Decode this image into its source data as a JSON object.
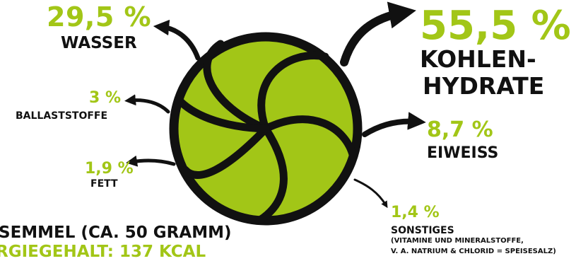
{
  "colors": {
    "accent": "#a2c617",
    "text": "#111111",
    "ball": "#a2c617"
  },
  "segments": [
    {
      "percent": "29,5 %",
      "label": "WASSER"
    },
    {
      "percent": "55,5 %",
      "label_line1": "KOHLEN-",
      "label_line2": "HYDRATE"
    },
    {
      "percent": "3 %",
      "label": "BALLASTSTOFFE"
    },
    {
      "percent": "8,7 %",
      "label": "EIWEISS"
    },
    {
      "percent": "1,9 %",
      "label": "FETT"
    },
    {
      "percent": "1,4 %",
      "label": "SONSTIGES",
      "note_line1": "(VITAMINE UND MINERALSTOFFE,",
      "note_line2": "V. A. NATRIUM & CHLORID = SPEISESALZ)"
    }
  ],
  "footer": {
    "line1": "SEMMEL (CA. 50 GRAMM)",
    "line2": "RGIEGEHALT: 137 KCAL"
  }
}
